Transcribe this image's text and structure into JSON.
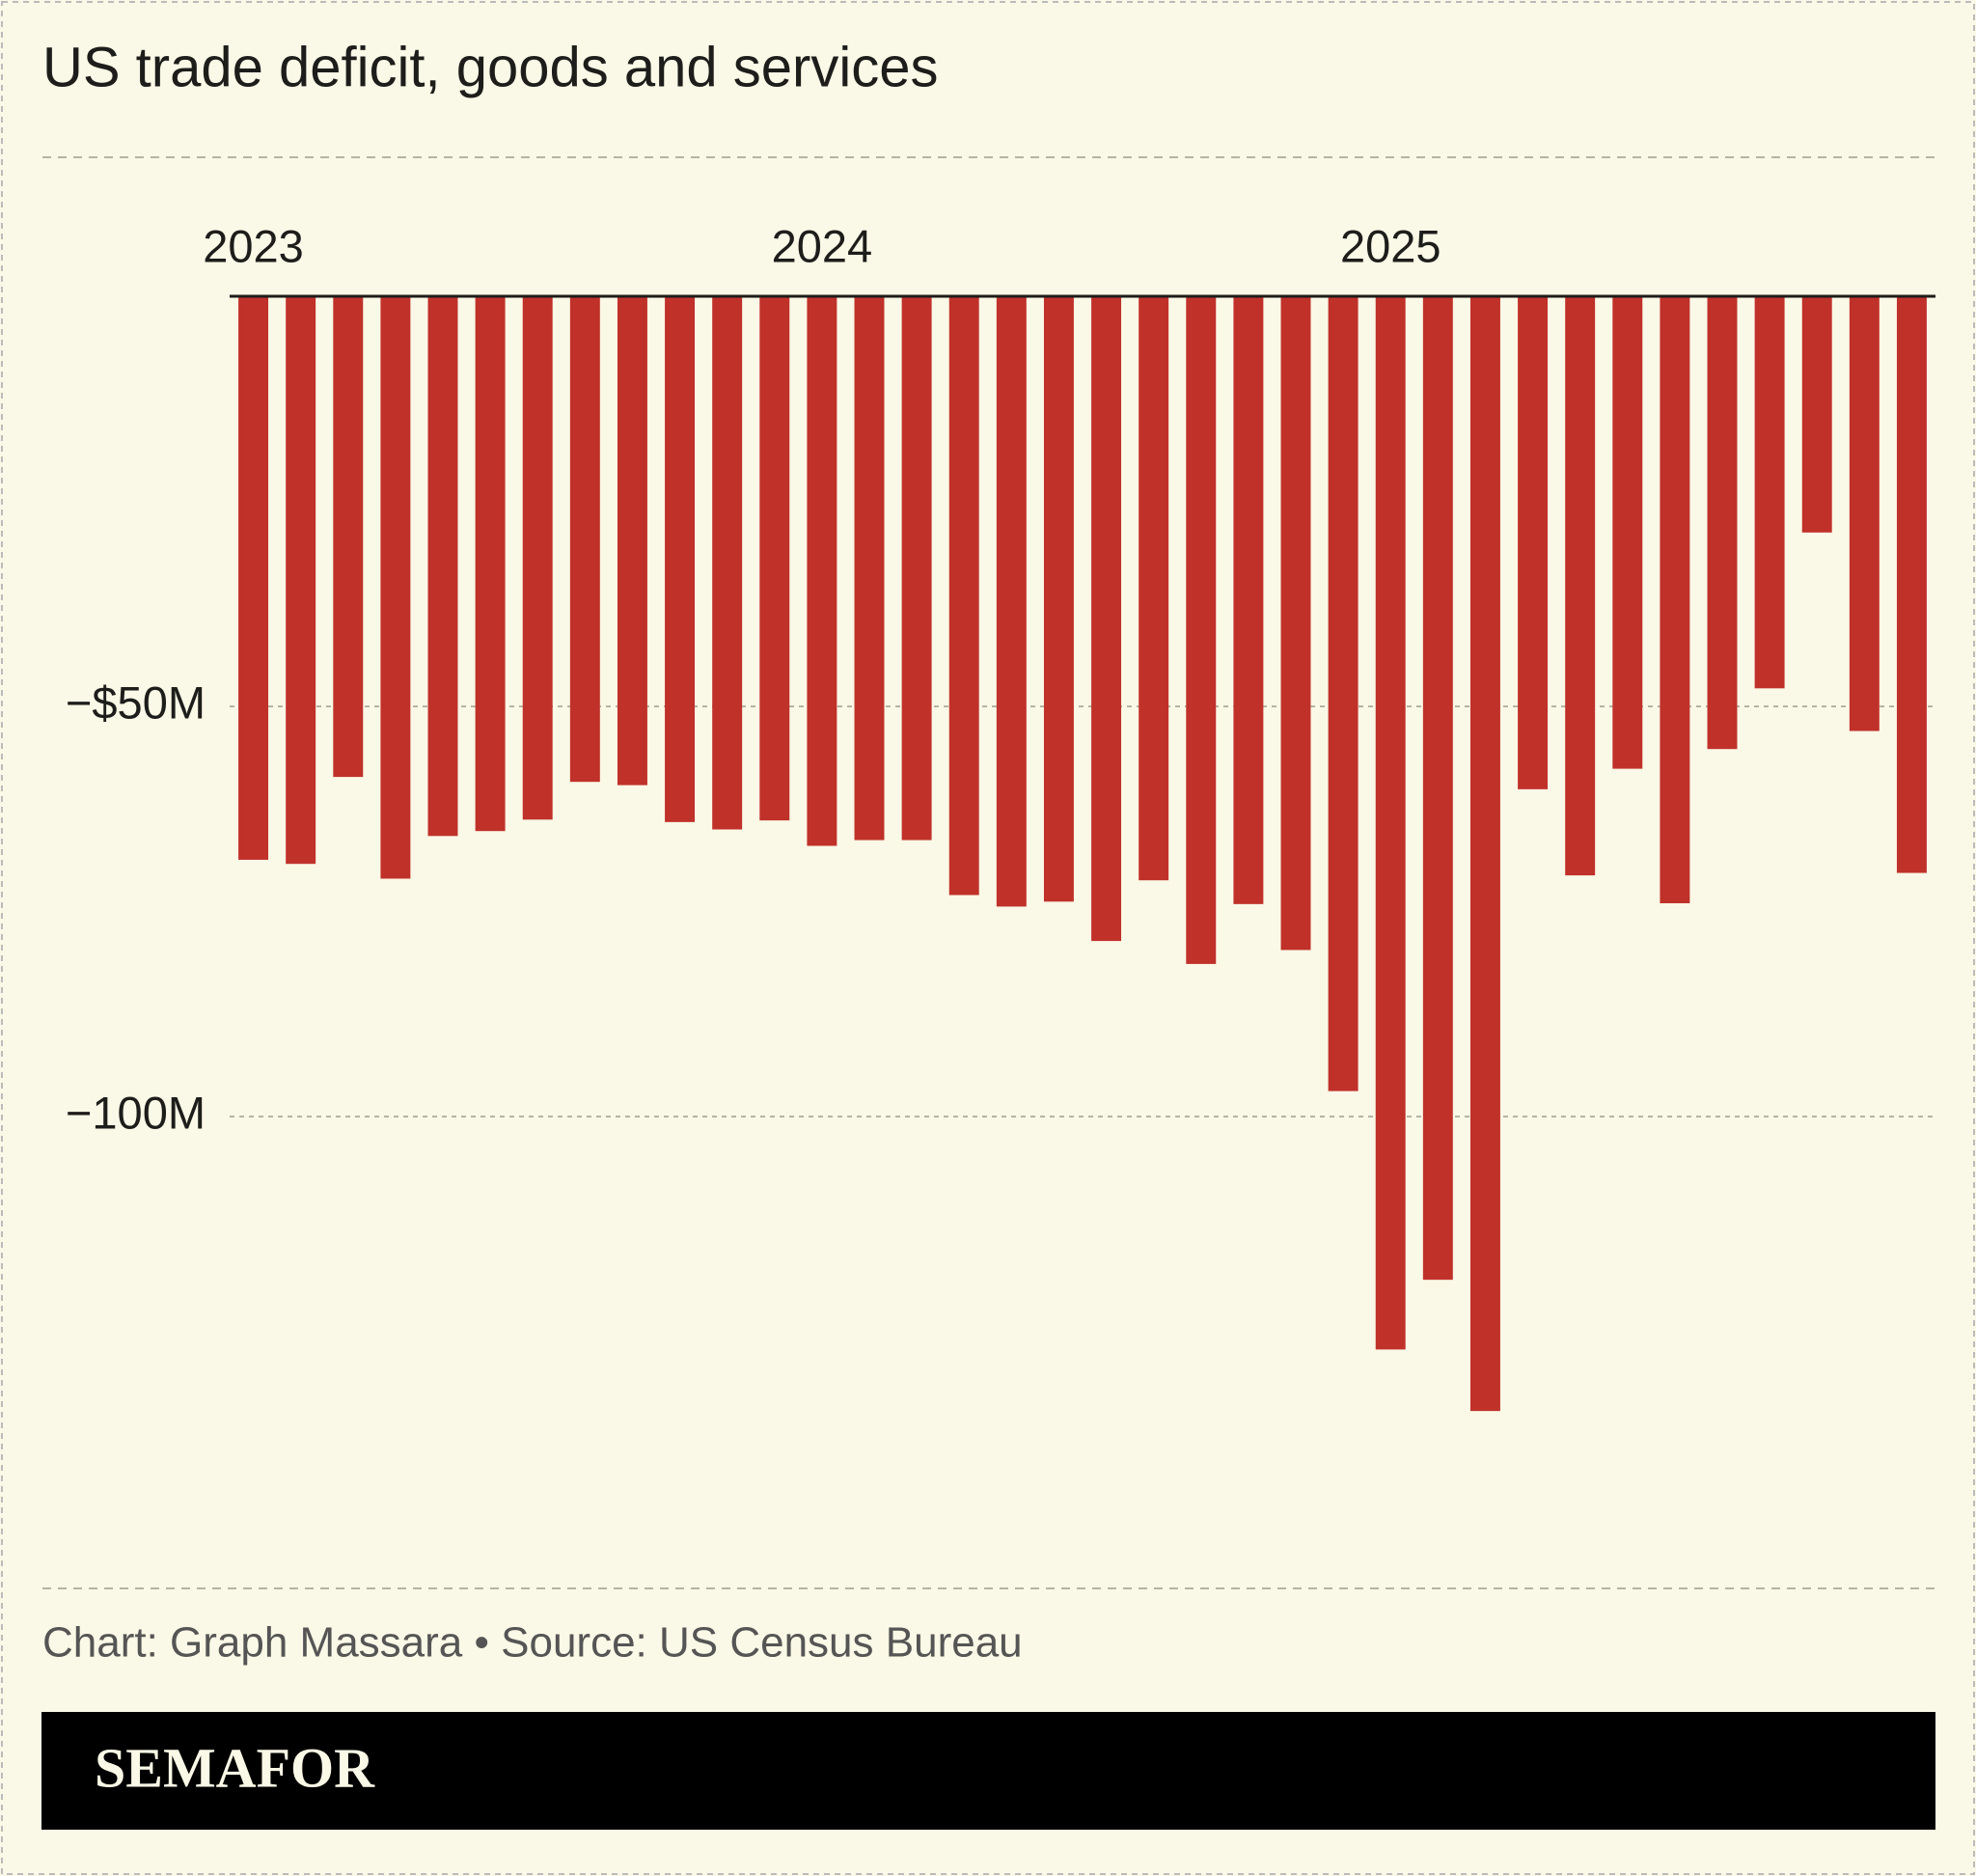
{
  "chart_data": {
    "type": "bar",
    "title": "US trade deficit, goods and services",
    "source": "Chart: Graph Massara  • Source: US Census Bureau",
    "brand": "SEMAFOR",
    "categories": [
      "2023",
      null,
      null,
      null,
      null,
      null,
      null,
      null,
      null,
      null,
      null,
      null,
      "2024",
      null,
      null,
      null,
      null,
      null,
      null,
      null,
      null,
      null,
      null,
      null,
      "2025",
      null,
      null,
      null,
      null,
      null,
      null,
      null,
      null,
      null,
      null,
      null
    ],
    "values": [
      -68.7,
      -69.2,
      -58.6,
      -71.0,
      -65.8,
      -65.2,
      -63.8,
      -59.2,
      -59.6,
      -64.1,
      -65.0,
      -63.9,
      -67.0,
      -66.3,
      -66.3,
      -73.0,
      -74.4,
      -73.8,
      -78.6,
      -71.2,
      -81.4,
      -74.1,
      -79.7,
      -96.9,
      -128.4,
      -119.9,
      -135.9,
      -60.1,
      -70.6,
      -57.6,
      -74.0,
      -55.2,
      -47.8,
      -28.8,
      -53.0,
      -70.3
    ],
    "color": "#c0312a",
    "ylim": [
      -156,
      0
    ],
    "yticks": [
      {
        "value": -50,
        "label": "−$50M"
      },
      {
        "value": -100,
        "label": "−100M"
      }
    ],
    "grid": true
  }
}
